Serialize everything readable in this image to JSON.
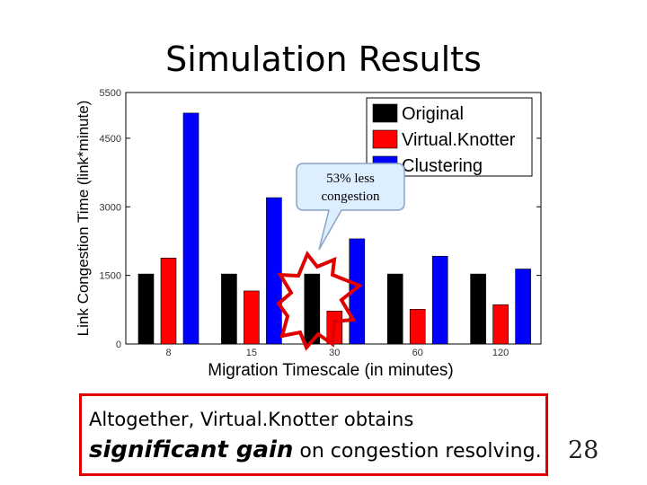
{
  "slide": {
    "title": "Simulation Results",
    "page_number": "28"
  },
  "callout": {
    "line1": "53% less",
    "line2": "congestion"
  },
  "summary": {
    "line1": "Altogether, Virtual.Knotter obtains",
    "emphasis": "significant gain",
    "line2_rest": " on congestion resolving."
  },
  "colors": {
    "original": "#000000",
    "virtualknotter": "#ff0000",
    "clustering": "#0000ff",
    "starburst": "#e00000",
    "callout_fill": "#ddeeff",
    "callout_border": "#8aa4c8"
  },
  "chart_data": {
    "type": "bar",
    "xlabel": "Migration Timescale (in minutes)",
    "ylabel": "Link Congestion Time (link*minute)",
    "categories": [
      "8",
      "15",
      "30",
      "60",
      "120"
    ],
    "series": [
      {
        "name": "Original",
        "values": [
          1530,
          1530,
          1530,
          1530,
          1530
        ]
      },
      {
        "name": "Virtual.Knotter",
        "values": [
          1880,
          1160,
          720,
          760,
          860
        ]
      },
      {
        "name": "Clustering",
        "values": [
          5050,
          3200,
          2300,
          1920,
          1640
        ]
      }
    ],
    "yticks": [
      0,
      1500,
      3000,
      4500,
      5500
    ],
    "ylim": [
      0,
      5500
    ],
    "legend_position": "top-right",
    "grid": false
  }
}
